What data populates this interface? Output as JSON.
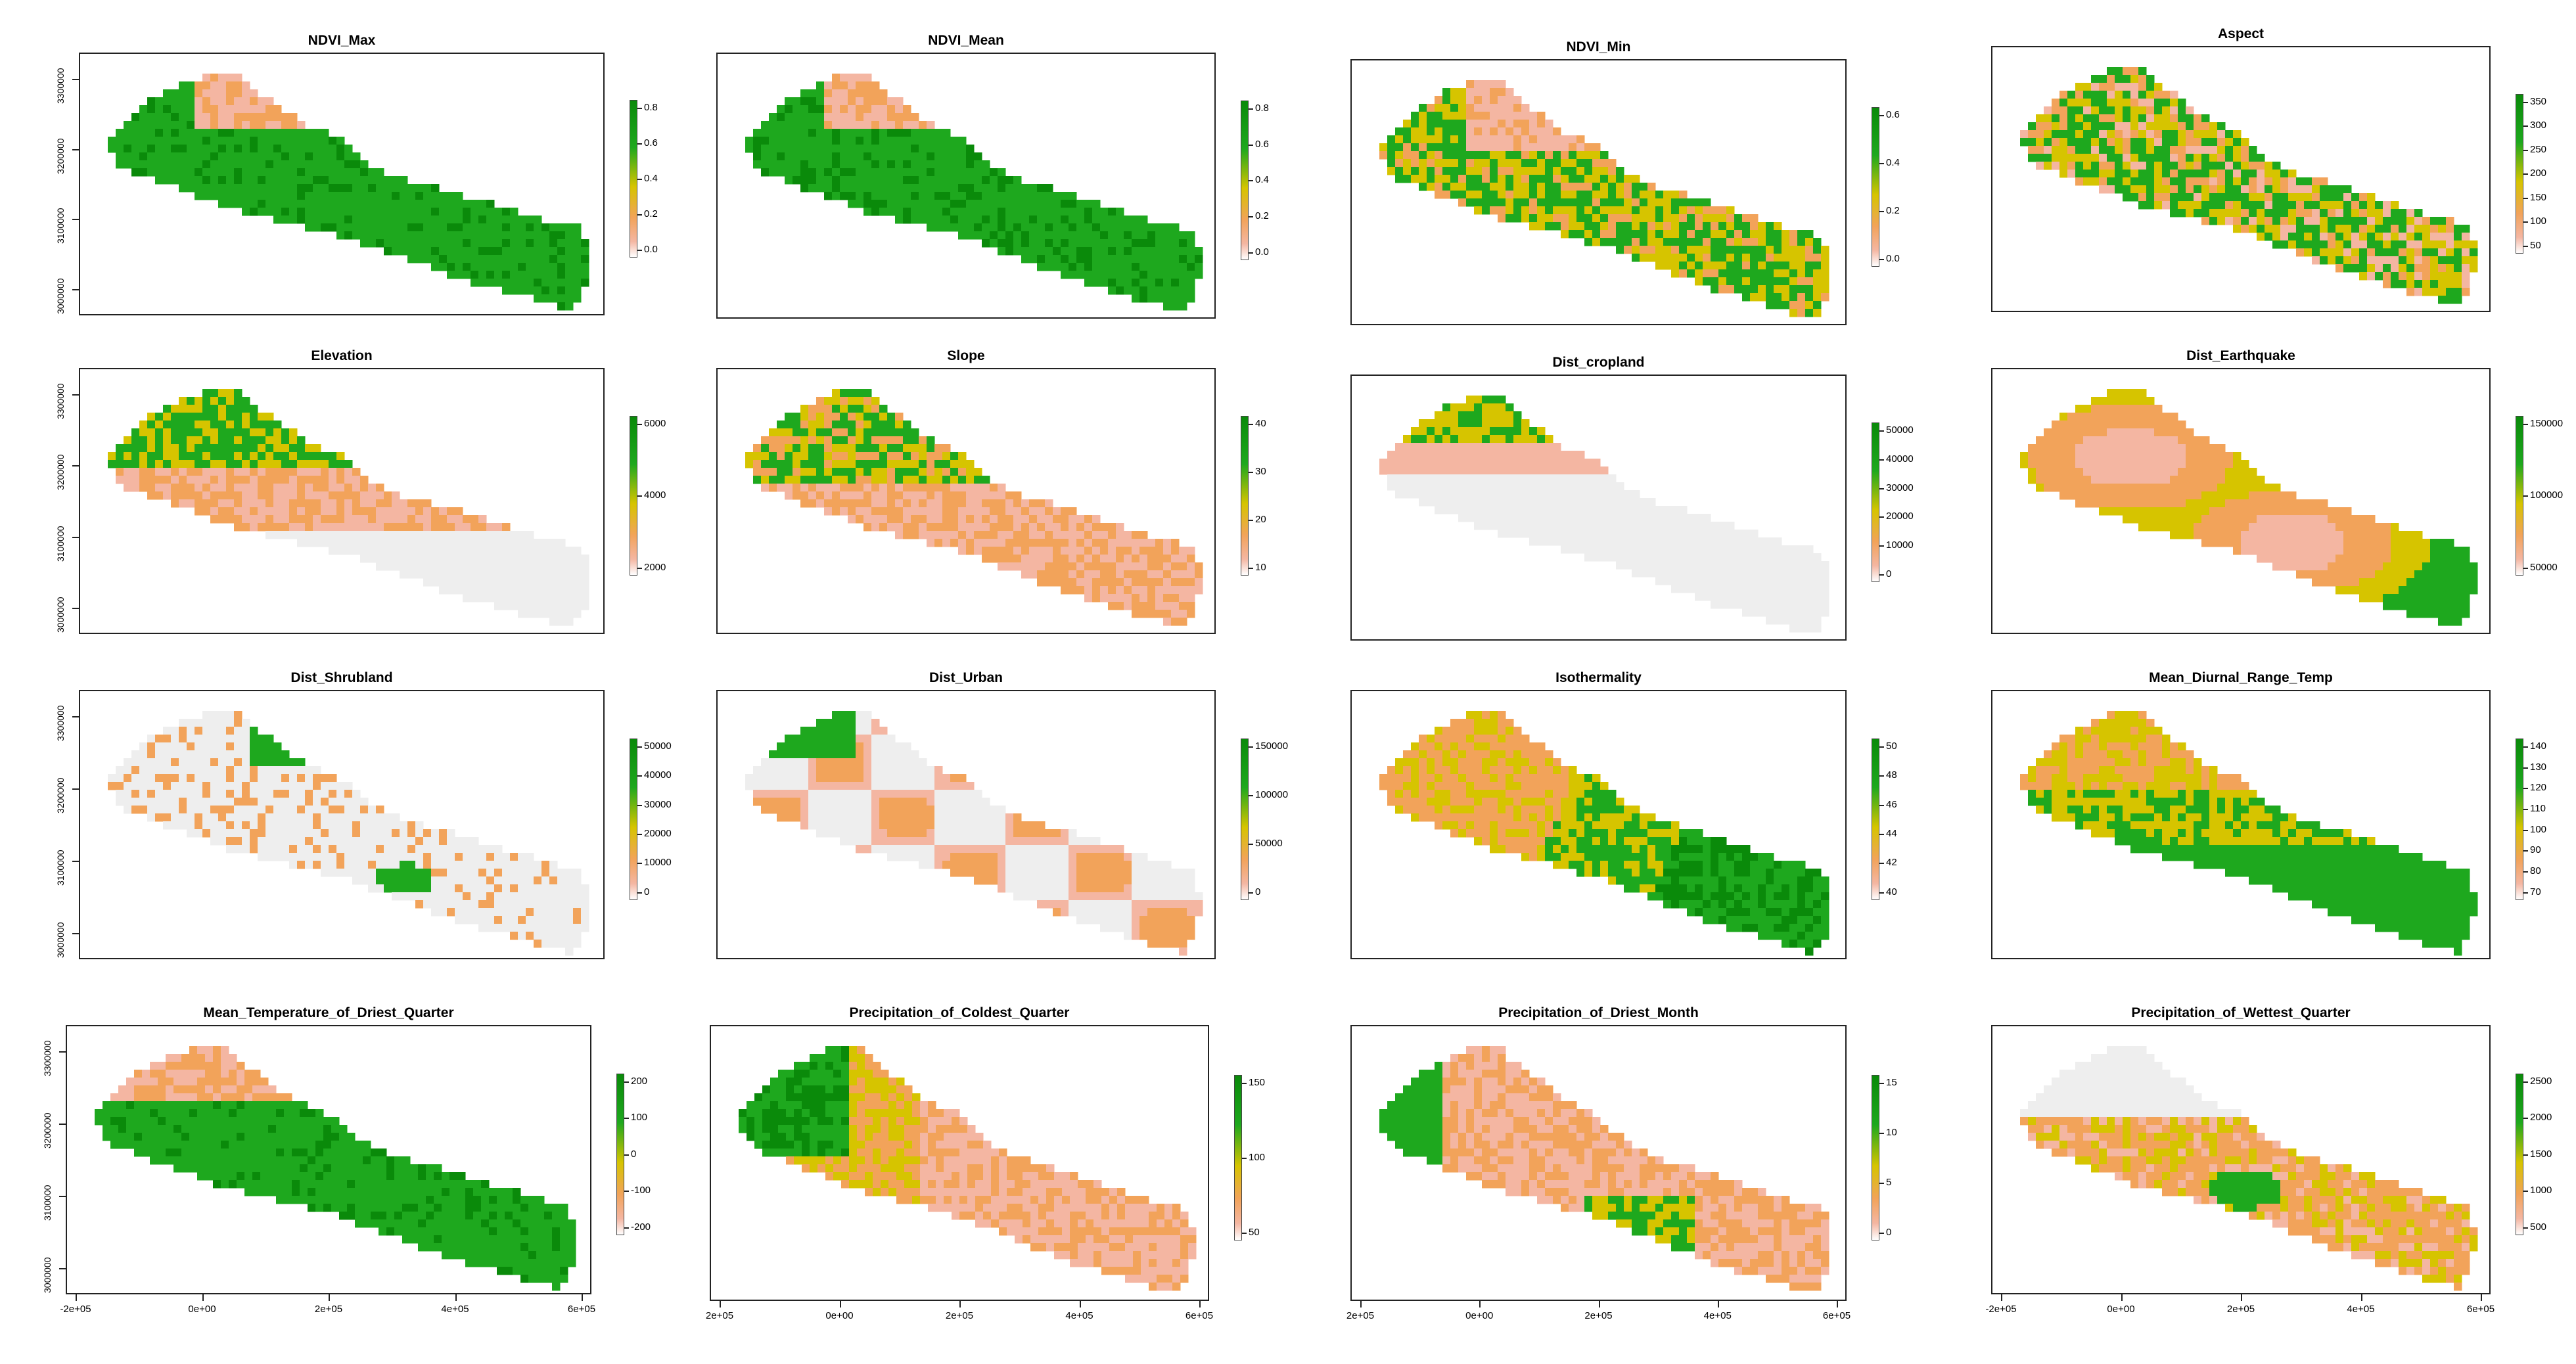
{
  "figure": {
    "panels": [
      {
        "title": "NDVI_Max",
        "legend": [
          "0.8",
          "0.6",
          "0.4",
          "0.2",
          "0.0"
        ],
        "ramp": "green",
        "pattern": "ndvi_high"
      },
      {
        "title": "NDVI_Mean",
        "legend": [
          "0.8",
          "0.6",
          "0.4",
          "0.2",
          "0.0"
        ],
        "ramp": "green",
        "pattern": "ndvi_high"
      },
      {
        "title": "NDVI_Min",
        "legend": [
          "0.6",
          "0.4",
          "0.2",
          "0.0"
        ],
        "ramp": "green",
        "pattern": "ndvi_mix"
      },
      {
        "title": "Aspect",
        "legend": [
          "350",
          "300",
          "250",
          "200",
          "150",
          "100",
          "50"
        ],
        "ramp": "green",
        "pattern": "noise"
      },
      {
        "title": "Elevation",
        "legend": [
          "6000",
          "4000",
          "2000"
        ],
        "ramp": "green",
        "pattern": "north_high"
      },
      {
        "title": "Slope",
        "legend": [
          "40",
          "30",
          "20",
          "10"
        ],
        "ramp": "green",
        "pattern": "north_mid"
      },
      {
        "title": "Dist_cropland",
        "legend": [
          "50000",
          "40000",
          "30000",
          "20000",
          "10000",
          "0"
        ],
        "ramp": "green",
        "pattern": "north_edge"
      },
      {
        "title": "Dist_Earthquake",
        "legend": [
          "150000",
          "100000",
          "50000"
        ],
        "ramp": "green",
        "pattern": "radial"
      },
      {
        "title": "Dist_Shrubland",
        "legend": [
          "50000",
          "40000",
          "30000",
          "20000",
          "10000",
          "0"
        ],
        "ramp": "green",
        "pattern": "pale"
      },
      {
        "title": "Dist_Urban",
        "legend": [
          "150000",
          "100000",
          "50000",
          "0"
        ],
        "ramp": "green",
        "pattern": "blobs"
      },
      {
        "title": "Isothermality",
        "legend": [
          "50",
          "48",
          "46",
          "44",
          "42",
          "40"
        ],
        "ramp": "green",
        "pattern": "east_high"
      },
      {
        "title": "Mean_Diurnal_Range_Temp",
        "legend": [
          "140",
          "130",
          "120",
          "110",
          "100",
          "90",
          "80",
          "70"
        ],
        "ramp": "green",
        "pattern": "south_high"
      },
      {
        "title": "Mean_Temperature_of_Driest_Quarter",
        "legend": [
          "200",
          "100",
          "0",
          "-100",
          "-200"
        ],
        "ramp": "green",
        "pattern": "south_green"
      },
      {
        "title": "Precipitation_of_Coldest_Quarter",
        "legend": [
          "150",
          "100",
          "50"
        ],
        "ramp": "green",
        "pattern": "west_high"
      },
      {
        "title": "Precipitation_of_Driest_Month",
        "legend": [
          "15",
          "10",
          "5",
          "0"
        ],
        "ramp": "green",
        "pattern": "mixed_low"
      },
      {
        "title": "Precipitation_of_Wettest_Quarter",
        "legend": [
          "2500",
          "2000",
          "1500",
          "1000",
          "500"
        ],
        "ramp": "green",
        "pattern": "center_high"
      }
    ],
    "y_axis_labels": [
      "3300000",
      "3200000",
      "3100000",
      "3000000"
    ],
    "x_axis_labels_a": [
      "-2e+05",
      "0e+00",
      "2e+05",
      "4e+05",
      "6e+05"
    ],
    "x_axis_labels_b": [
      "2e+05",
      "0e+00",
      "2e+05",
      "4e+05",
      "6e+05"
    ],
    "colors": {
      "green": "#1ea81e",
      "dark_green": "#0a8a0a",
      "yellow": "#d6c400",
      "orange": "#f2a35a",
      "salmon": "#f4b6a2",
      "pale": "#eeeeee"
    }
  }
}
